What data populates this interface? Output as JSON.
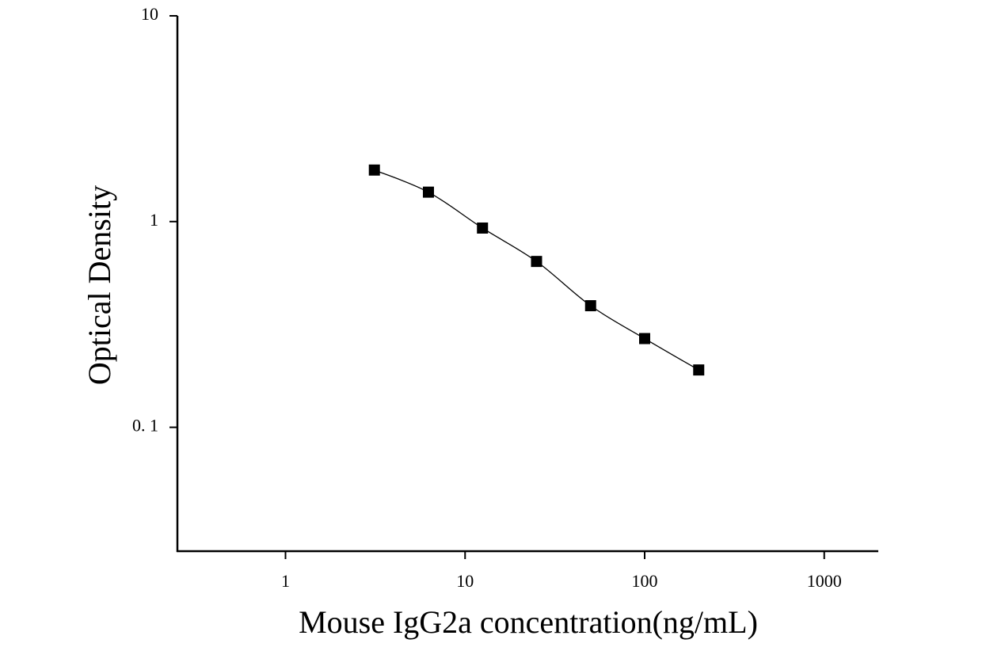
{
  "chart_data": {
    "type": "scatter",
    "x_label": "Mouse IgG2a concentration(ng/mL)",
    "y_label": "Optical Density",
    "x_log": true,
    "y_log": true,
    "xlim": [
      0.25,
      2000
    ],
    "ylim": [
      0.025,
      10
    ],
    "xticks": [
      1,
      10,
      100,
      1000
    ],
    "yticks": [
      {
        "value": 0.1,
        "label": "0. 1"
      },
      1,
      10
    ],
    "fit_curve": true,
    "series": [
      {
        "color": "#000000",
        "x": [
          3.125,
          6.25,
          12.5,
          25,
          50,
          100,
          200
        ],
        "values": [
          1.78,
          1.39,
          0.93,
          0.64,
          0.39,
          0.27,
          0.19
        ]
      }
    ]
  }
}
